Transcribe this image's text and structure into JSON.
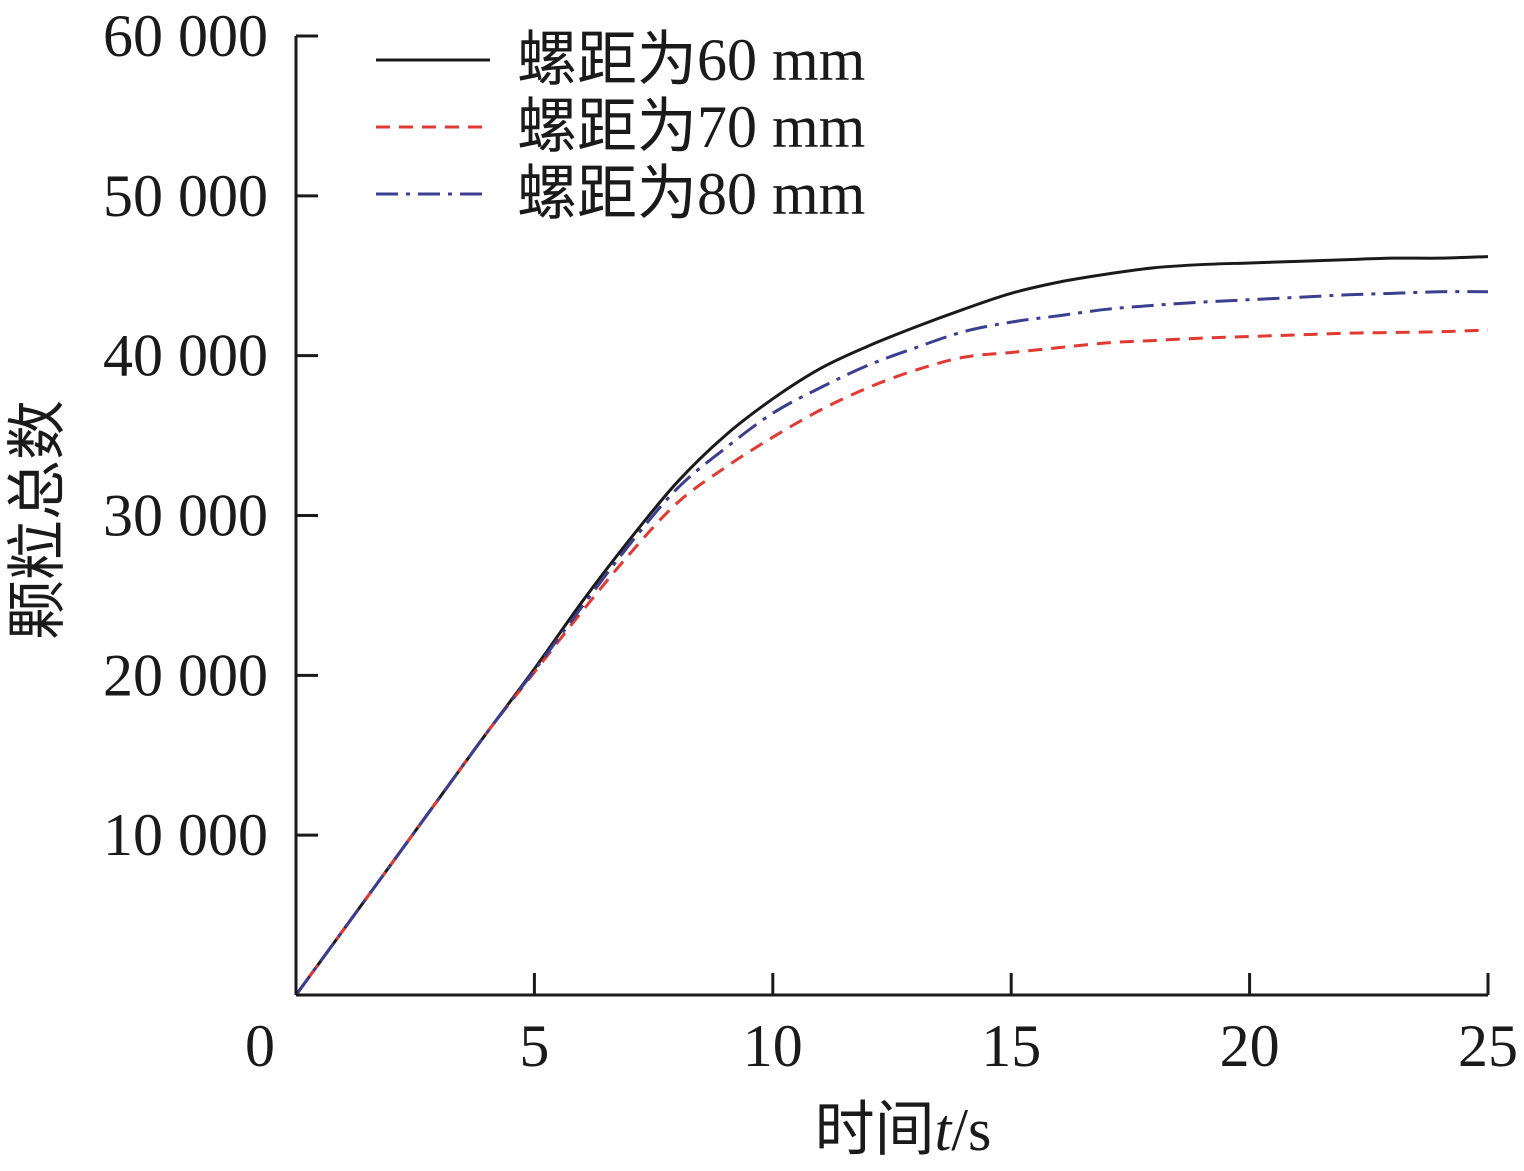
{
  "chart_data": {
    "type": "line",
    "xlabel_prefix": "时间",
    "xlabel_var": "t",
    "xlabel_unit": "/s",
    "ylabel": "颗粒总数",
    "xlim": [
      0,
      25
    ],
    "ylim": [
      0,
      60000
    ],
    "x_ticks": [
      {
        "value": 0,
        "label": "0"
      },
      {
        "value": 5,
        "label": "5"
      },
      {
        "value": 10,
        "label": "10"
      },
      {
        "value": 15,
        "label": "15"
      },
      {
        "value": 20,
        "label": "20"
      },
      {
        "value": 25,
        "label": "25"
      }
    ],
    "y_ticks": [
      {
        "value": 10000,
        "label": "10 000"
      },
      {
        "value": 20000,
        "label": "20 000"
      },
      {
        "value": 30000,
        "label": "30 000"
      },
      {
        "value": 40000,
        "label": "40 000"
      },
      {
        "value": 50000,
        "label": "50 000"
      },
      {
        "value": 60000,
        "label": "60 000"
      }
    ],
    "grid": false,
    "legend_position": "top-left",
    "series": [
      {
        "name": "螺距为60 mm",
        "color": "#1a1a1a",
        "style": "solid",
        "x": [
          0,
          1,
          2,
          3,
          4,
          5,
          6,
          7,
          8,
          9,
          10,
          11,
          12,
          13,
          14,
          15,
          16,
          17,
          18,
          19,
          20,
          21,
          22,
          23,
          24,
          25
        ],
        "y": [
          0,
          4100,
          8200,
          12300,
          16400,
          20400,
          24600,
          28500,
          32100,
          35000,
          37300,
          39200,
          40600,
          41800,
          42900,
          43900,
          44600,
          45100,
          45500,
          45700,
          45800,
          45900,
          46000,
          46100,
          46100,
          46200
        ]
      },
      {
        "name": "螺距为70 mm",
        "color": "#e03a32",
        "style": "dashed",
        "x": [
          0,
          1,
          2,
          3,
          4,
          5,
          6,
          7,
          8,
          9,
          10,
          11,
          12,
          13,
          14,
          15,
          16,
          17,
          18,
          19,
          20,
          21,
          22,
          23,
          24,
          25
        ],
        "y": [
          0,
          4100,
          8200,
          12300,
          16400,
          20200,
          24000,
          27600,
          30800,
          33000,
          34900,
          36600,
          38000,
          39100,
          39900,
          40200,
          40500,
          40800,
          40950,
          41100,
          41200,
          41300,
          41400,
          41450,
          41500,
          41600
        ]
      },
      {
        "name": "螺距为80 mm",
        "color": "#3a3f8f",
        "style": "dashdot",
        "x": [
          0,
          1,
          2,
          3,
          4,
          5,
          6,
          7,
          8,
          9,
          10,
          11,
          12,
          13,
          14,
          15,
          16,
          17,
          18,
          19,
          20,
          21,
          22,
          23,
          24,
          25
        ],
        "y": [
          0,
          4100,
          8200,
          12300,
          16400,
          20300,
          24300,
          28200,
          31700,
          34200,
          36400,
          38000,
          39400,
          40500,
          41500,
          42100,
          42500,
          42900,
          43150,
          43350,
          43500,
          43650,
          43800,
          43900,
          44000,
          44000
        ]
      }
    ]
  }
}
